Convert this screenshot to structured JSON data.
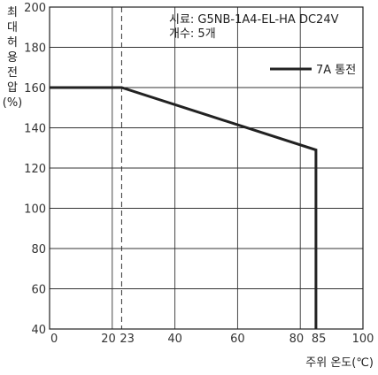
{
  "chart_data": {
    "type": "line",
    "ylabel_chars": [
      "최",
      "대",
      "허",
      "용",
      "전",
      "압",
      "(%)"
    ],
    "xlabel": "주위 온도(℃)",
    "annotation_lines": [
      "시료: G5NB-1A4-EL-HA  DC24V",
      "개수: 5개"
    ],
    "xlim": [
      0,
      100
    ],
    "ylim": [
      40,
      200
    ],
    "x_ticks": [
      0,
      20,
      23,
      40,
      60,
      80,
      85,
      100
    ],
    "y_ticks": [
      40,
      60,
      80,
      100,
      120,
      140,
      160,
      180,
      200
    ],
    "x_gridlines": [
      20,
      40,
      60,
      80
    ],
    "y_gridlines": [
      60,
      80,
      100,
      120,
      140,
      160,
      180
    ],
    "reference_line_x": 23,
    "series": [
      {
        "name": "7A 통전",
        "color": "#222222",
        "points": [
          [
            0,
            160
          ],
          [
            23,
            160
          ],
          [
            85,
            129
          ],
          [
            85,
            40
          ]
        ]
      }
    ],
    "legend_placement": "top-right"
  }
}
